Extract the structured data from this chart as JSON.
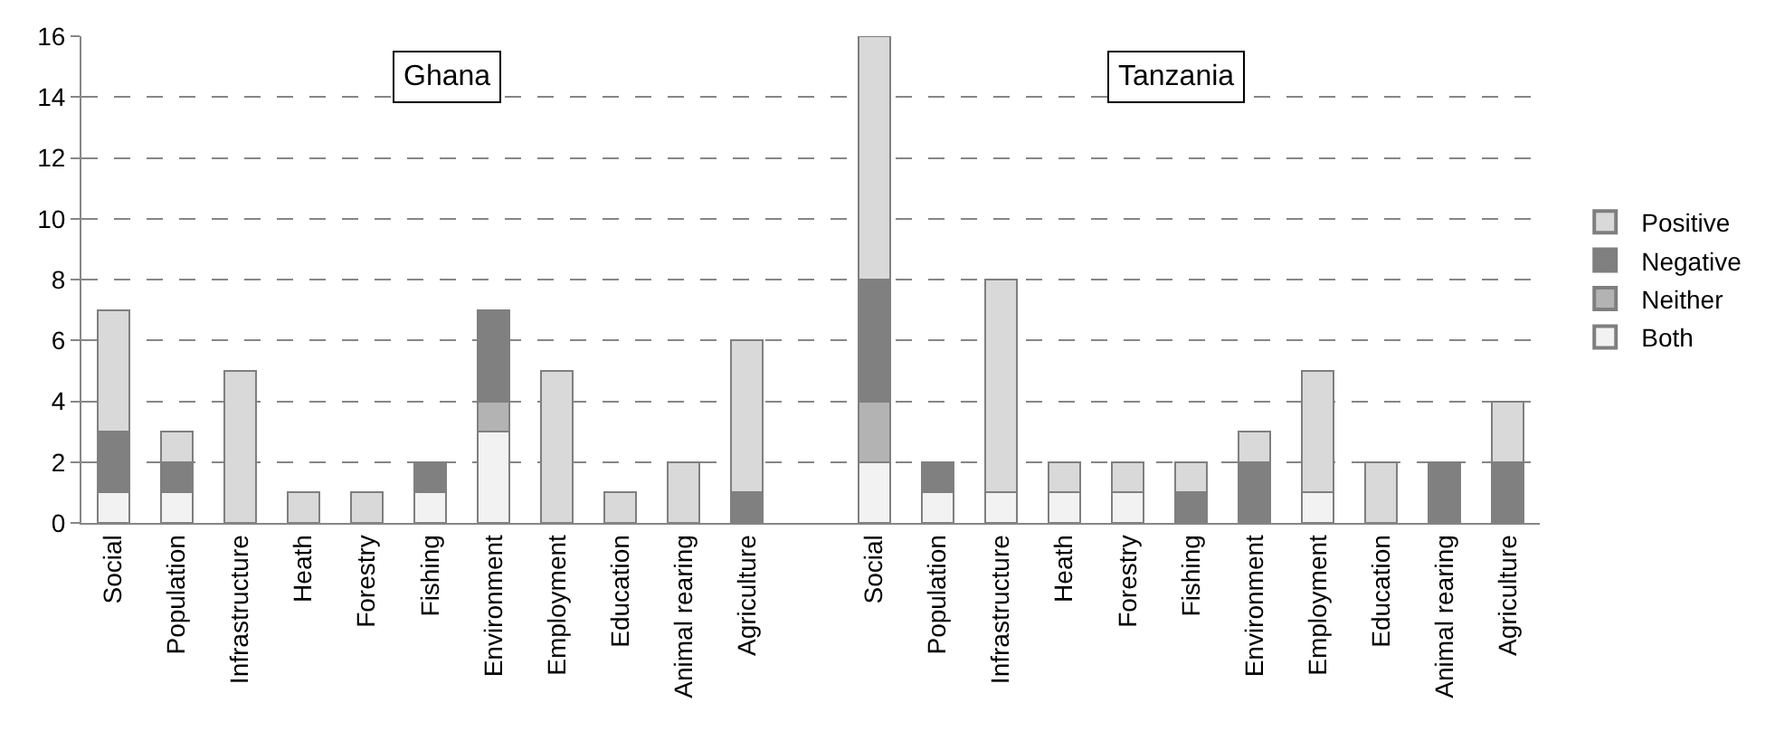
{
  "chart_data": {
    "type": "bar",
    "stacked": true,
    "categories": [
      "Social",
      "Population",
      "Infrastructure",
      "Heath",
      "Forestry",
      "Fishing",
      "Environment",
      "Employment",
      "Education",
      "Animal rearing",
      "Agriculture",
      null,
      "Social",
      "Population",
      "Infrastructure",
      "Heath",
      "Forestry",
      "Fishing",
      "Environment",
      "Employment",
      "Education",
      "Animal rearing",
      "Agriculture"
    ],
    "series": [
      {
        "name": "Both",
        "color": "#f2f2f2",
        "values": [
          1,
          1,
          null,
          null,
          null,
          1,
          3,
          null,
          null,
          null,
          null,
          null,
          2,
          1,
          1,
          1,
          1,
          null,
          null,
          1,
          null,
          null,
          null
        ]
      },
      {
        "name": "Neither",
        "color": "#b3b3b3",
        "values": [
          null,
          null,
          null,
          null,
          null,
          null,
          1,
          null,
          null,
          null,
          null,
          null,
          2,
          null,
          null,
          null,
          null,
          null,
          null,
          null,
          null,
          null,
          null
        ]
      },
      {
        "name": "Negative",
        "color": "#808080",
        "values": [
          2,
          1,
          null,
          null,
          null,
          1,
          3,
          null,
          null,
          null,
          1,
          null,
          4,
          1,
          null,
          null,
          null,
          1,
          2,
          null,
          null,
          2,
          2
        ]
      },
      {
        "name": "Positive",
        "color": "#d9d9d9",
        "values": [
          4,
          1,
          5,
          1,
          1,
          null,
          null,
          5,
          1,
          2,
          5,
          null,
          8,
          null,
          7,
          1,
          1,
          1,
          1,
          4,
          2,
          null,
          2
        ]
      }
    ],
    "ylim": [
      0,
      16
    ],
    "yticks": [
      0,
      2,
      4,
      6,
      8,
      10,
      12,
      14,
      16
    ],
    "grid": "y",
    "legend": "right",
    "annotations": [
      "Ghana",
      "Tanzania"
    ]
  }
}
